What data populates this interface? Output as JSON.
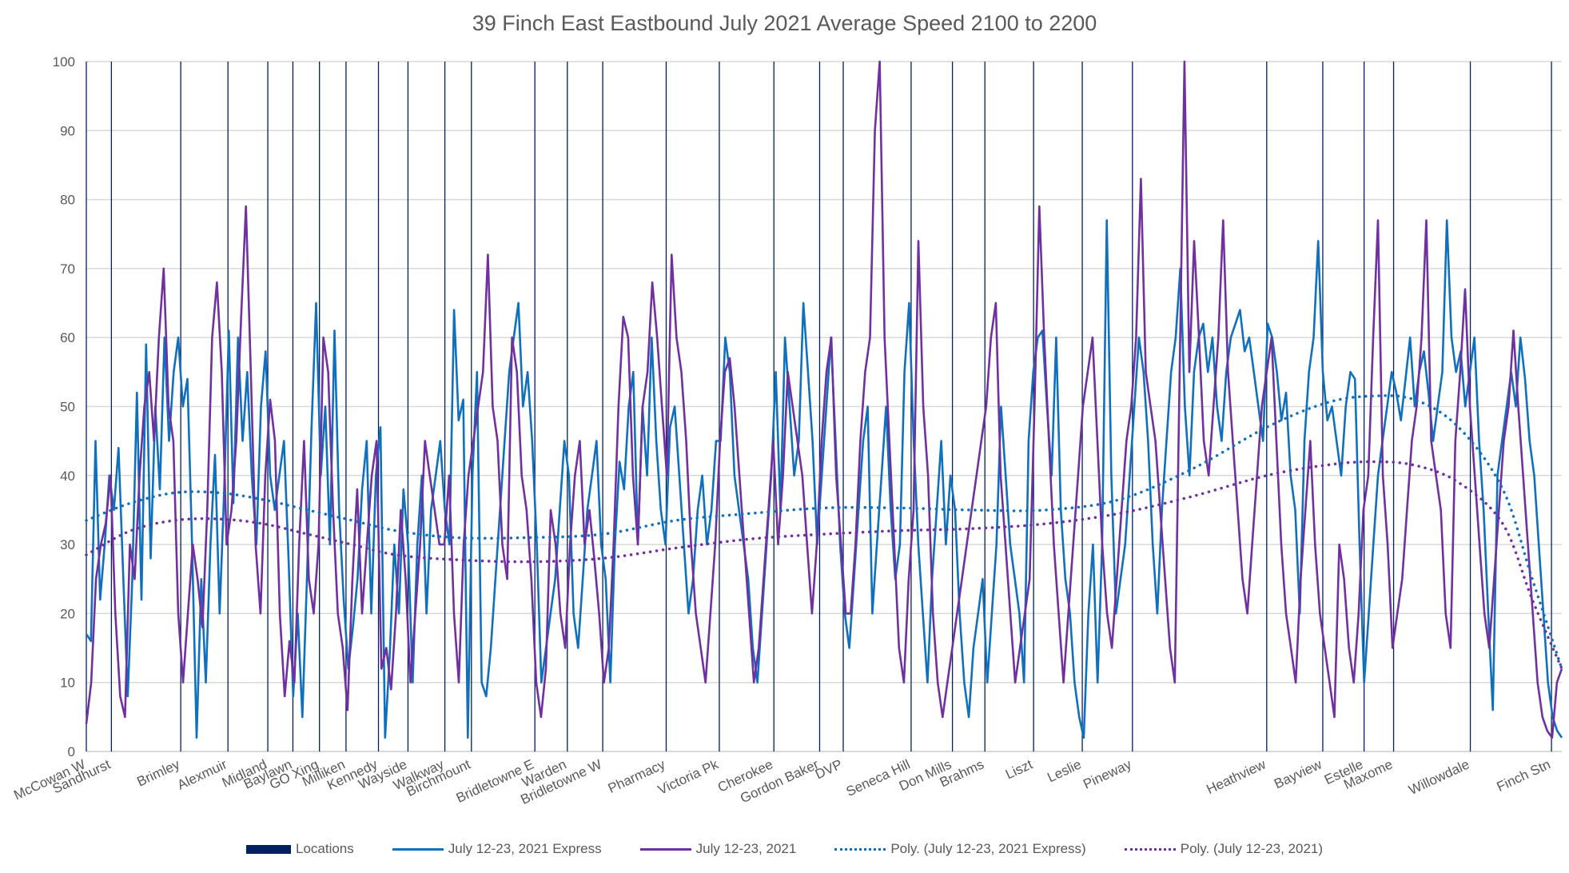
{
  "chart_data": {
    "type": "line",
    "title": "39 Finch East Eastbound July 2021 Average Speed 2100 to 2200",
    "xlabel": "",
    "ylabel": "",
    "ylim": [
      0,
      100
    ],
    "yticks": [
      0,
      10,
      20,
      30,
      40,
      50,
      60,
      70,
      80,
      90,
      100
    ],
    "grid": true,
    "legend_position": "bottom",
    "x_domain": [
      0,
      1
    ],
    "locations": [
      {
        "name": "McCowan W",
        "x": 0.0
      },
      {
        "name": "Sandhurst",
        "x": 0.017
      },
      {
        "name": "Brimley",
        "x": 0.064
      },
      {
        "name": "Alexmuir",
        "x": 0.096
      },
      {
        "name": "Midland",
        "x": 0.123
      },
      {
        "name": "Baylawn",
        "x": 0.14
      },
      {
        "name": "GO Xing",
        "x": 0.158
      },
      {
        "name": "Milliken",
        "x": 0.176
      },
      {
        "name": "Kennedy",
        "x": 0.198
      },
      {
        "name": "Wayside",
        "x": 0.218
      },
      {
        "name": "Walkway",
        "x": 0.243
      },
      {
        "name": "Birchmount",
        "x": 0.261
      },
      {
        "name": "Bridletowne E",
        "x": 0.304
      },
      {
        "name": "Warden",
        "x": 0.326
      },
      {
        "name": "Bridletowne W",
        "x": 0.35
      },
      {
        "name": "Pharmacy",
        "x": 0.393
      },
      {
        "name": "Victoria Pk",
        "x": 0.429
      },
      {
        "name": "Cherokee",
        "x": 0.466
      },
      {
        "name": "Gordon Baker",
        "x": 0.497
      },
      {
        "name": "DVP",
        "x": 0.513
      },
      {
        "name": "Seneca Hill",
        "x": 0.559
      },
      {
        "name": "Don Mills",
        "x": 0.587
      },
      {
        "name": "Brahms",
        "x": 0.609
      },
      {
        "name": "Liszt",
        "x": 0.642
      },
      {
        "name": "Leslie",
        "x": 0.675
      },
      {
        "name": "Pineway",
        "x": 0.709
      },
      {
        "name": "Heathview",
        "x": 0.8
      },
      {
        "name": "Bayview",
        "x": 0.838
      },
      {
        "name": "Estelle",
        "x": 0.866
      },
      {
        "name": "Maxome",
        "x": 0.886
      },
      {
        "name": "Willowdale",
        "x": 0.938
      },
      {
        "name": "Finch Stn",
        "x": 0.993
      }
    ],
    "series": [
      {
        "name": "July 12-23, 2021 Express",
        "color": "#0F70BE",
        "style": "solid",
        "values": [
          17,
          16,
          45,
          22,
          30,
          40,
          35,
          44,
          26,
          8,
          25,
          52,
          22,
          59,
          28,
          50,
          38,
          60,
          45,
          55,
          60,
          50,
          54,
          30,
          2,
          25,
          10,
          30,
          43,
          20,
          38,
          61,
          36,
          60,
          45,
          55,
          40,
          30,
          50,
          58,
          40,
          35,
          40,
          45,
          28,
          8,
          20,
          5,
          25,
          47,
          65,
          40,
          50,
          30,
          61,
          35,
          22,
          12,
          18,
          25,
          38,
          45,
          20,
          40,
          47,
          2,
          14,
          30,
          20,
          38,
          30,
          10,
          30,
          40,
          20,
          35,
          40,
          45,
          35,
          30,
          64,
          48,
          51,
          2,
          40,
          55,
          10,
          8,
          15,
          25,
          35,
          45,
          55,
          60,
          65,
          50,
          55,
          45,
          30,
          10,
          15,
          20,
          25,
          35,
          45,
          40,
          20,
          15,
          25,
          35,
          40,
          45,
          30,
          25,
          10,
          30,
          42,
          38,
          50,
          55,
          30,
          50,
          40,
          60,
          45,
          35,
          30,
          47,
          50,
          40,
          30,
          20,
          25,
          35,
          40,
          30,
          35,
          45,
          45,
          60,
          55,
          40,
          35,
          30,
          25,
          15,
          10,
          20,
          30,
          40,
          55,
          35,
          60,
          50,
          40,
          45,
          65,
          55,
          45,
          30,
          40,
          50,
          60,
          45,
          30,
          20,
          15,
          25,
          35,
          45,
          50,
          20,
          30,
          40,
          50,
          35,
          25,
          30,
          55,
          65,
          45,
          30,
          20,
          10,
          25,
          35,
          45,
          30,
          40,
          35,
          20,
          10,
          5,
          15,
          20,
          25,
          10,
          20,
          30,
          50,
          40,
          30,
          25,
          20,
          10,
          45,
          55,
          60,
          61,
          50,
          40,
          60,
          35,
          25,
          20,
          10,
          5,
          2,
          20,
          30,
          10,
          30,
          77,
          40,
          20,
          25,
          30,
          40,
          50,
          60,
          55,
          45,
          30,
          20,
          35,
          45,
          55,
          60,
          70,
          50,
          40,
          55,
          60,
          62,
          55,
          60,
          50,
          45,
          55,
          60,
          62,
          64,
          58,
          60,
          55,
          50,
          45,
          62,
          60,
          55,
          48,
          52,
          40,
          35,
          20,
          45,
          55,
          60,
          74,
          55,
          48,
          50,
          45,
          40,
          50,
          55,
          54,
          30,
          10,
          20,
          30,
          40,
          45,
          50,
          55,
          52,
          48,
          54,
          60,
          50,
          55,
          58,
          52,
          45,
          50,
          55,
          77,
          60,
          55,
          58,
          50,
          55,
          60,
          45,
          35,
          20,
          6,
          40,
          45,
          50,
          55,
          50,
          60,
          54,
          45,
          40,
          30,
          20,
          10,
          5,
          3,
          2
        ]
      },
      {
        "name": "July 12-23, 2021",
        "color": "#7030A0",
        "style": "solid",
        "values": [
          4,
          10,
          25,
          30,
          33,
          40,
          20,
          8,
          5,
          30,
          25,
          40,
          50,
          55,
          45,
          60,
          70,
          50,
          45,
          20,
          10,
          20,
          30,
          25,
          18,
          35,
          60,
          68,
          55,
          30,
          35,
          45,
          63,
          79,
          55,
          30,
          20,
          40,
          51,
          45,
          20,
          8,
          16,
          10,
          30,
          45,
          25,
          20,
          30,
          60,
          55,
          35,
          20,
          15,
          6,
          25,
          38,
          20,
          30,
          40,
          45,
          12,
          15,
          9,
          20,
          35,
          25,
          10,
          20,
          30,
          45,
          40,
          35,
          30,
          30,
          40,
          20,
          10,
          30,
          40,
          45,
          50,
          55,
          72,
          50,
          45,
          30,
          25,
          60,
          55,
          40,
          35,
          25,
          10,
          5,
          12,
          35,
          30,
          20,
          15,
          30,
          40,
          45,
          30,
          35,
          28,
          20,
          10,
          15,
          30,
          50,
          63,
          60,
          40,
          30,
          50,
          55,
          68,
          60,
          50,
          40,
          72,
          60,
          55,
          45,
          30,
          20,
          15,
          10,
          20,
          30,
          45,
          55,
          57,
          50,
          40,
          30,
          20,
          10,
          15,
          25,
          35,
          45,
          30,
          40,
          55,
          50,
          45,
          40,
          30,
          20,
          30,
          45,
          55,
          60,
          40,
          30,
          20,
          20,
          30,
          45,
          55,
          60,
          90,
          100,
          60,
          45,
          30,
          15,
          10,
          25,
          35,
          74,
          50,
          40,
          20,
          10,
          5,
          10,
          15,
          20,
          25,
          30,
          35,
          40,
          45,
          50,
          60,
          65,
          40,
          30,
          20,
          10,
          15,
          20,
          25,
          50,
          79,
          60,
          45,
          30,
          20,
          10,
          20,
          30,
          40,
          50,
          55,
          60,
          45,
          30,
          20,
          15,
          25,
          35,
          45,
          50,
          60,
          83,
          55,
          50,
          45,
          35,
          25,
          15,
          10,
          55,
          100,
          55,
          74,
          60,
          45,
          40,
          50,
          60,
          77,
          55,
          45,
          35,
          25,
          20,
          30,
          40,
          50,
          55,
          60,
          45,
          30,
          20,
          15,
          10,
          25,
          35,
          45,
          30,
          20,
          15,
          10,
          5,
          30,
          25,
          15,
          10,
          20,
          35,
          40,
          60,
          77,
          40,
          30,
          15,
          20,
          25,
          35,
          45,
          50,
          60,
          77,
          45,
          40,
          35,
          20,
          15,
          45,
          55,
          67,
          50,
          40,
          30,
          20,
          15,
          25,
          35,
          45,
          50,
          61,
          50,
          40,
          30,
          20,
          10,
          5,
          3,
          2,
          10,
          12
        ]
      },
      {
        "name": "Poly. (July 12-23, 2021 Express)",
        "color": "#0F70BE",
        "style": "dotted",
        "trend_x": [
          0,
          0.03,
          0.06,
          0.09,
          0.12,
          0.15,
          0.18,
          0.21,
          0.25,
          0.3,
          0.35,
          0.4,
          0.45,
          0.5,
          0.55,
          0.6,
          0.65,
          0.7,
          0.75,
          0.8,
          0.84,
          0.87,
          0.9,
          0.93,
          0.96,
          0.98,
          1.0
        ],
        "values": [
          33.5,
          36,
          37.5,
          37.5,
          36.5,
          35,
          33.5,
          32,
          31,
          31,
          31.5,
          33.5,
          34.5,
          35.3,
          35.3,
          35,
          35,
          36.5,
          41,
          47,
          50.5,
          51.5,
          51,
          47,
          38,
          25,
          12
        ]
      },
      {
        "name": "Poly. (July 12-23, 2021)",
        "color": "#7030A0",
        "style": "dotted",
        "trend_x": [
          0,
          0.03,
          0.06,
          0.09,
          0.12,
          0.15,
          0.18,
          0.21,
          0.25,
          0.3,
          0.35,
          0.4,
          0.45,
          0.5,
          0.55,
          0.6,
          0.65,
          0.7,
          0.75,
          0.8,
          0.84,
          0.87,
          0.9,
          0.93,
          0.96,
          0.98,
          1.0
        ],
        "values": [
          28.5,
          32,
          33.5,
          33.7,
          33,
          31.5,
          30,
          28.5,
          27.8,
          27.5,
          28,
          29.5,
          30.8,
          31.5,
          32,
          32.3,
          33,
          34.5,
          37,
          40,
          41.5,
          42,
          41.5,
          39,
          33,
          22,
          12
        ]
      }
    ]
  },
  "legend": [
    {
      "label": "Locations",
      "color": "#002060",
      "kind": "box"
    },
    {
      "label": "July 12-23, 2021 Express",
      "color": "#0F70BE",
      "kind": "solid"
    },
    {
      "label": "July 12-23, 2021",
      "color": "#7030A0",
      "kind": "solid"
    },
    {
      "label": "Poly. (July 12-23, 2021 Express)",
      "color": "#0F70BE",
      "kind": "dotted"
    },
    {
      "label": "Poly. (July 12-23, 2021)",
      "color": "#7030A0",
      "kind": "dotted"
    }
  ],
  "colors": {
    "locations": "#002060",
    "grid": "#D9D9D9",
    "text": "#595959"
  }
}
